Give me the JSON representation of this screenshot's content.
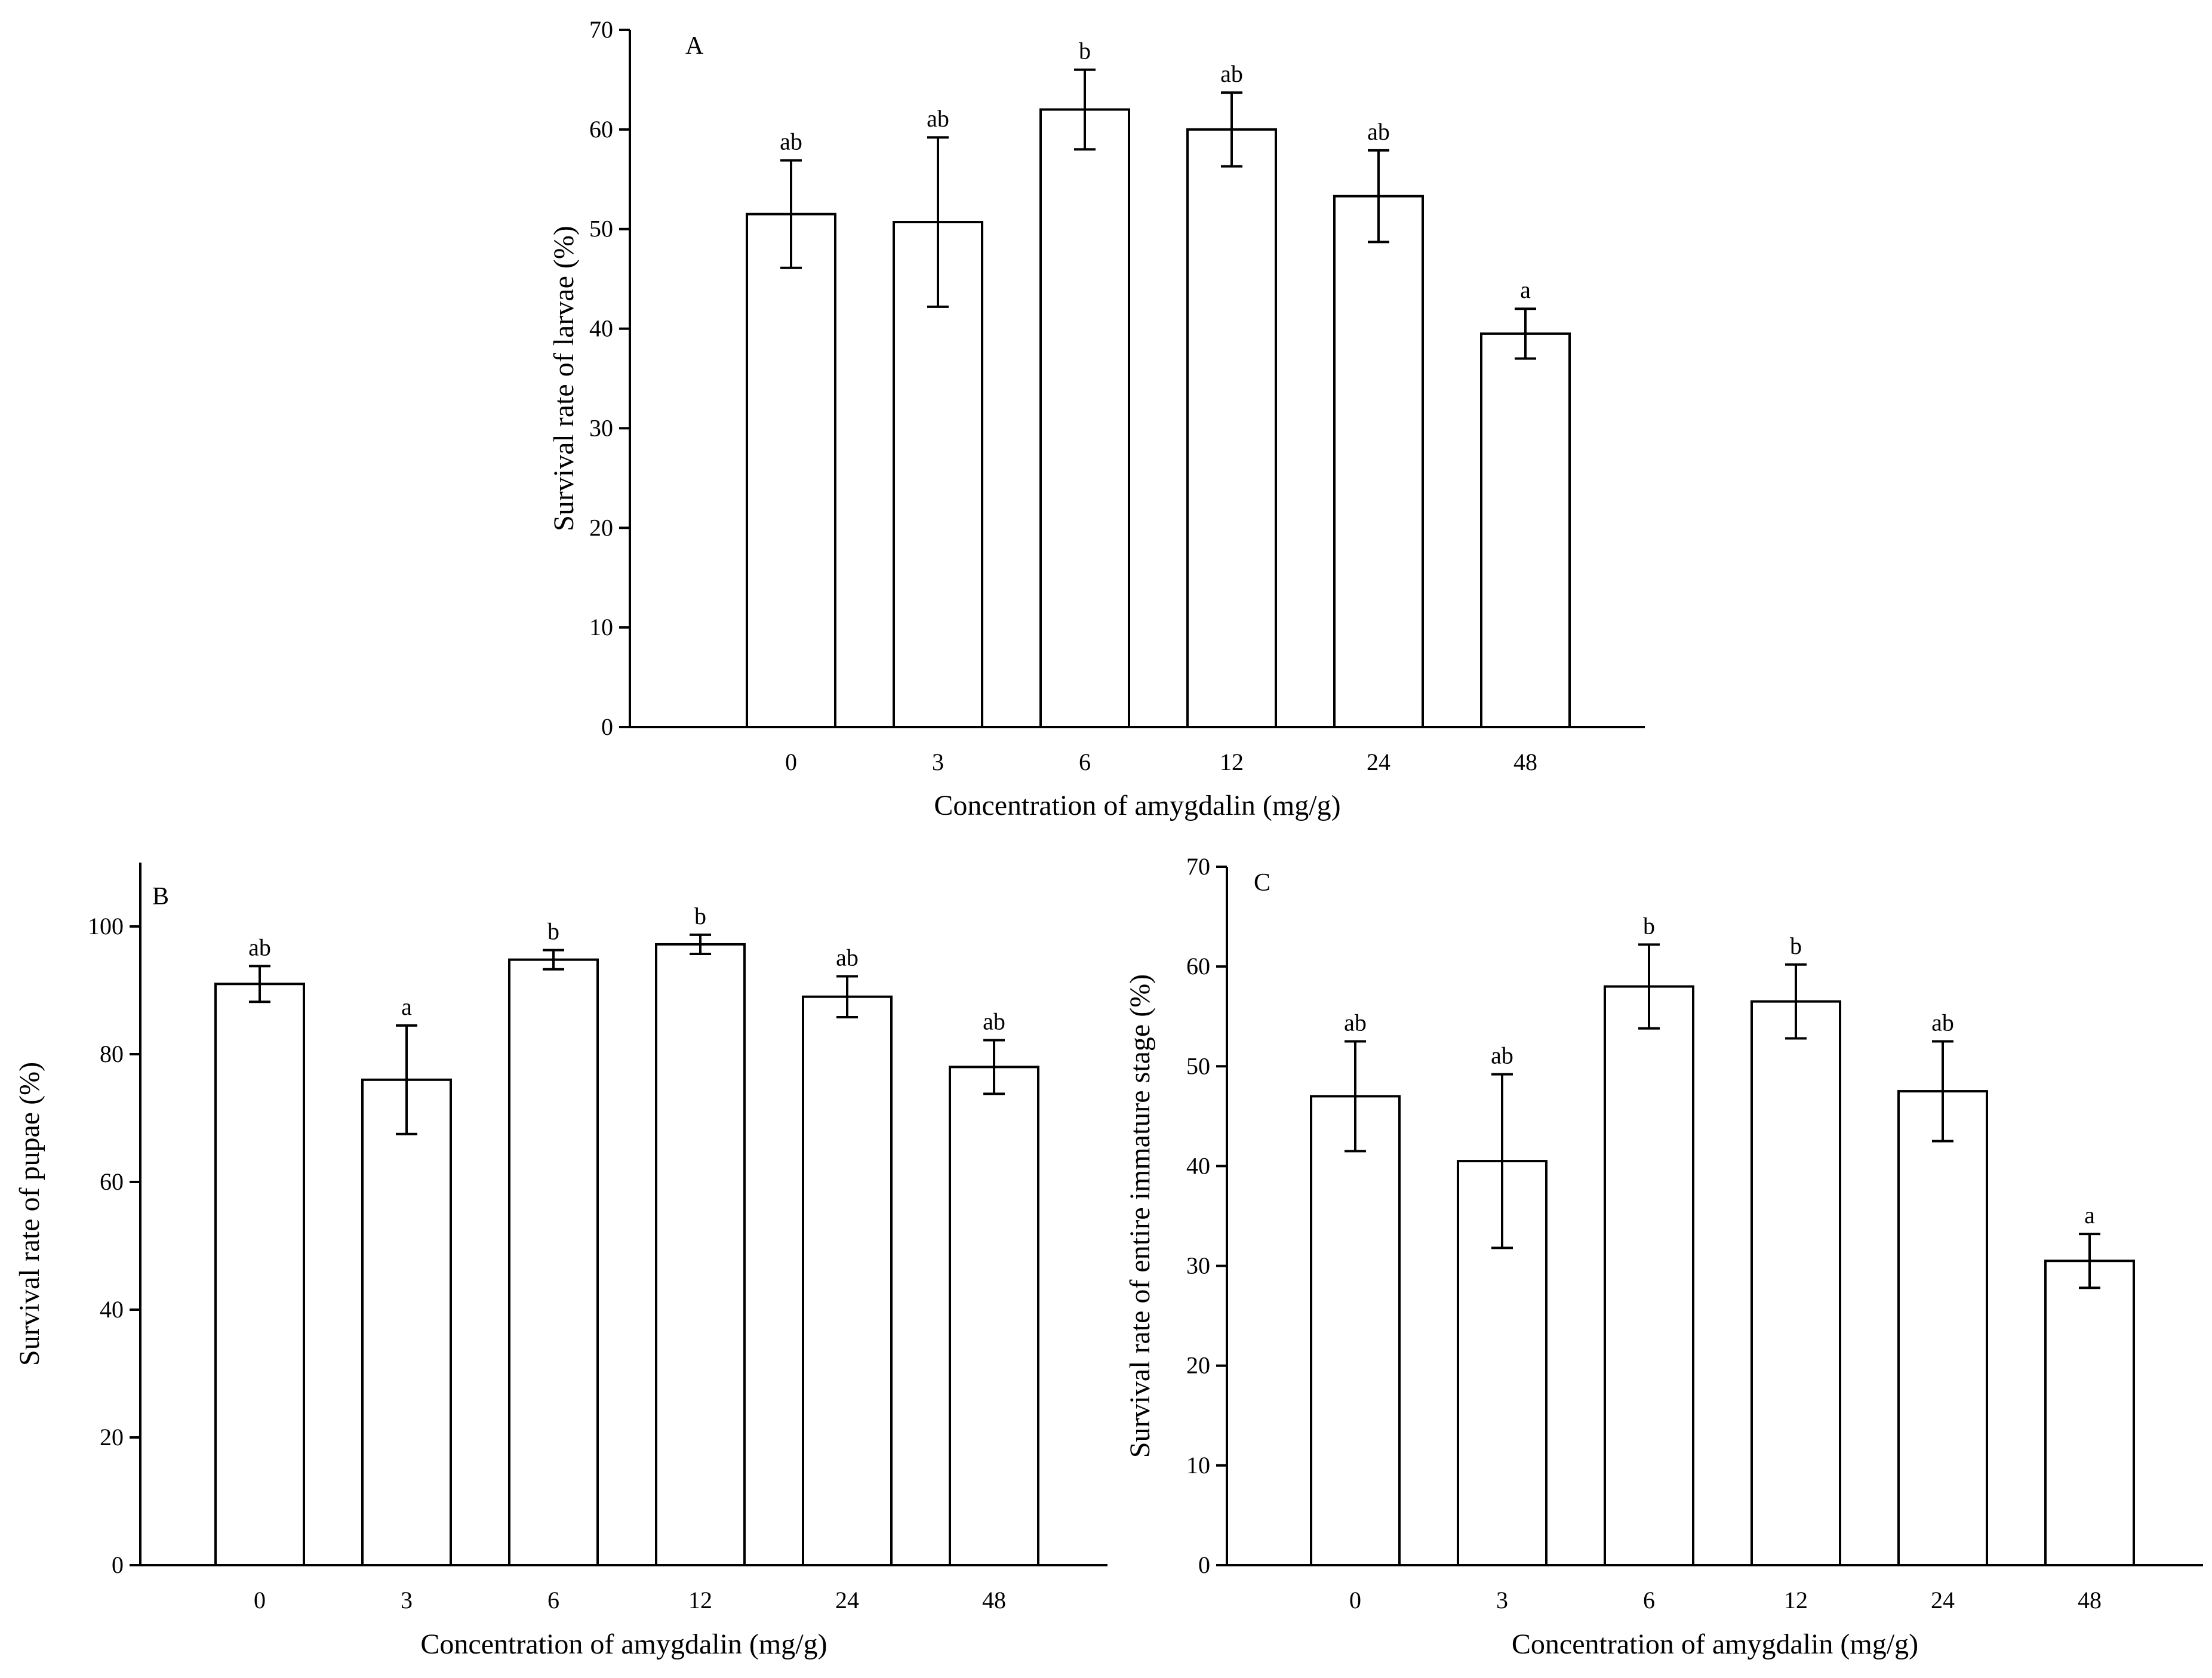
{
  "chart_data": [
    {
      "panel": "A",
      "type": "bar",
      "panel_label": "A",
      "xlabel": "Concentration of amygdalin (mg/g)",
      "ylabel": "Survival rate of larvae (%)",
      "categories": [
        "0",
        "3",
        "6",
        "12",
        "24",
        "48"
      ],
      "values": [
        51.5,
        50.7,
        62.0,
        60.0,
        53.3,
        39.5
      ],
      "errors": [
        5.4,
        8.5,
        4.0,
        3.7,
        4.6,
        2.5
      ],
      "letters": [
        "ab",
        "ab",
        "b",
        "ab",
        "ab",
        "a"
      ],
      "ylim": [
        0,
        70
      ],
      "yticks": [
        0,
        10,
        20,
        30,
        40,
        50,
        60,
        70
      ]
    },
    {
      "panel": "B",
      "type": "bar",
      "panel_label": "B",
      "xlabel": "Concentration of amygdalin (mg/g)",
      "ylabel": "Survival rate of pupae (%)",
      "categories": [
        "0",
        "3",
        "6",
        "12",
        "24",
        "48"
      ],
      "values": [
        91.0,
        76.0,
        94.8,
        97.2,
        89.0,
        78.0
      ],
      "errors": [
        2.8,
        8.5,
        1.5,
        1.5,
        3.2,
        4.2
      ],
      "letters": [
        "ab",
        "a",
        "b",
        "b",
        "ab",
        "ab"
      ],
      "ylim": [
        0,
        110
      ],
      "yticks": [
        0,
        20,
        40,
        60,
        80,
        100
      ]
    },
    {
      "panel": "C",
      "type": "bar",
      "panel_label": "C",
      "xlabel": "Concentration of amygdalin (mg/g)",
      "ylabel": "Survival rate of entire immature stage (%)",
      "categories": [
        "0",
        "3",
        "6",
        "12",
        "24",
        "48"
      ],
      "values": [
        47.0,
        40.5,
        58.0,
        56.5,
        47.5,
        30.5
      ],
      "errors": [
        5.5,
        8.7,
        4.2,
        3.7,
        5.0,
        2.7
      ],
      "letters": [
        "ab",
        "ab",
        "b",
        "b",
        "ab",
        "a"
      ],
      "ylim": [
        0,
        70
      ],
      "yticks": [
        0,
        10,
        20,
        30,
        40,
        50,
        60,
        70
      ]
    }
  ]
}
